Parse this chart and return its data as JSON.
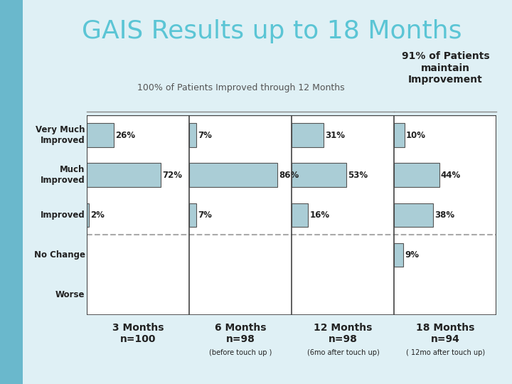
{
  "title": "GAIS Results up to 18 Months",
  "subtitle_left": "100% of Patients Improved through 12 Months",
  "subtitle_right": "91% of Patients\nmaintain\nImprovement",
  "categories": [
    "Very Much\nImproved",
    "Much\nImproved",
    "Improved",
    "No Change",
    "Worse"
  ],
  "time_labels_main": [
    "3 Months\nn=100",
    "6 Months\nn=98",
    "12 Months\nn=98",
    "18 Months\nn=94"
  ],
  "time_labels_sub": [
    "",
    "(before touch up )",
    "(6mo after touch up)",
    "( 12mo after touch up)"
  ],
  "data": {
    "3mo": [
      26,
      72,
      2,
      0,
      0
    ],
    "6mo": [
      7,
      86,
      7,
      0,
      0
    ],
    "12mo": [
      31,
      53,
      16,
      0,
      0
    ],
    "18mo": [
      10,
      44,
      38,
      9,
      0
    ]
  },
  "bar_color": "#aacdd6",
  "bar_edge_color": "#555555",
  "bg_color": "#ffffff",
  "slide_bg": "#dff0f5",
  "left_bar_color": "#6ab8cc",
  "title_color": "#5bc5d5",
  "subtitle_left_color": "#555555",
  "subtitle_right_color": "#222222",
  "dashed_line_color": "#aaaaaa",
  "border_color": "#444444",
  "value_color": "#222222",
  "cat_label_color": "#222222",
  "time_label_color": "#222222",
  "title_fontsize": 26,
  "subtitle_fontsize": 9,
  "category_fontsize": 8.5,
  "value_fontsize": 8.5,
  "time_label_fontsize": 10,
  "time_sub_fontsize": 7
}
